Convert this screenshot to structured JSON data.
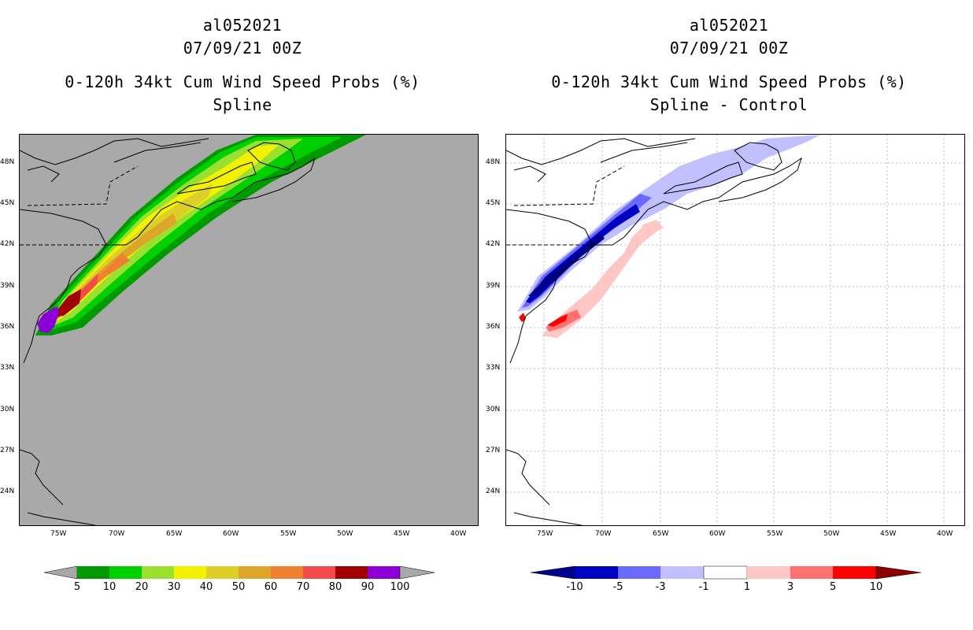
{
  "left_panel": {
    "storm_id": "al052021",
    "datetime": "07/09/21 00Z",
    "product": "0-120h 34kt Cum Wind Speed Probs (%)",
    "subtitle": "Spline"
  },
  "right_panel": {
    "storm_id": "al052021",
    "datetime": "07/09/21 00Z",
    "product": "0-120h 34kt Cum Wind Speed Probs (%)",
    "subtitle": "Spline - Control"
  },
  "axes": {
    "lon_labels": [
      "75W",
      "70W",
      "65W",
      "60W",
      "55W",
      "50W",
      "45W",
      "40W"
    ],
    "lat_labels": [
      "48N",
      "45N",
      "42N",
      "39N",
      "36N",
      "33N",
      "30N",
      "27N",
      "24N"
    ]
  },
  "left_colorbar": {
    "labels": [
      "5",
      "10",
      "20",
      "30",
      "40",
      "50",
      "60",
      "70",
      "80",
      "90",
      "100"
    ],
    "colors": [
      "#009a00",
      "#00cf00",
      "#99e02f",
      "#f1f100",
      "#dccf2a",
      "#dda52a",
      "#ee8030",
      "#f24b4b",
      "#a00000",
      "#8b00d6"
    ]
  },
  "right_colorbar": {
    "labels": [
      "-10",
      "-5",
      "-3",
      "-1",
      "1",
      "3",
      "5",
      "10"
    ],
    "colors": [
      "#0000c0",
      "#6a6aff",
      "#c0c0ff",
      "#ffffff",
      "#ffc6c6",
      "#ff7070",
      "#ff0000"
    ],
    "end_low": "#00008a",
    "end_high": "#8a0000"
  },
  "colors": {
    "map_background_left": "#a9a9a9",
    "grid_right": "#bdbdbd"
  }
}
